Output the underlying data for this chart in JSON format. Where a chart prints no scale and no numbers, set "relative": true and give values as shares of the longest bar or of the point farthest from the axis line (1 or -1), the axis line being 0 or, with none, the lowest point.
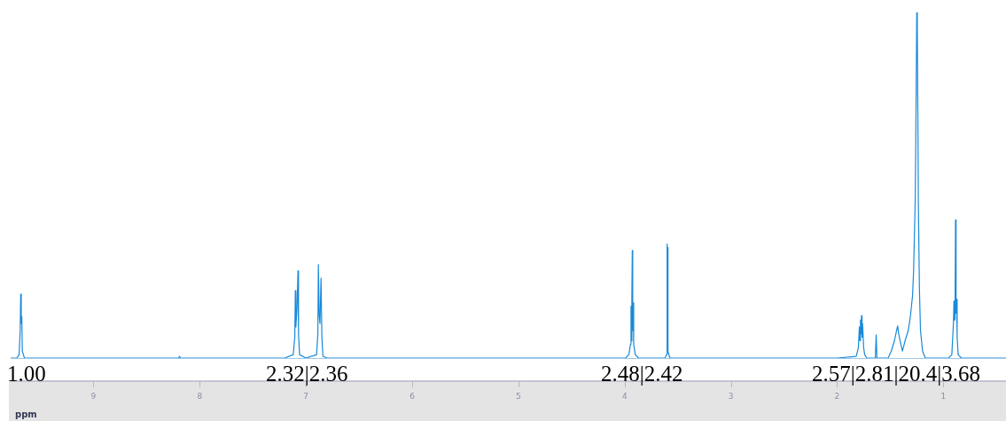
{
  "chart_data": {
    "type": "line",
    "relative": true,
    "xlabel": "ppm",
    "xlim": [
      9.78,
      0.41
    ],
    "xticks": [
      9,
      8,
      7,
      6,
      5,
      4,
      3,
      2,
      1
    ],
    "grid": false,
    "legend": false,
    "marker": "none",
    "line_style": "solid",
    "series": [
      {
        "color": "#1a8ad8",
        "x": [
          9.78,
          9.72,
          9.7,
          9.69,
          9.685,
          9.68,
          9.675,
          9.67,
          9.65,
          8.2,
          8.19,
          8.18,
          7.2,
          7.12,
          7.105,
          7.1,
          7.095,
          7.085,
          7.075,
          7.07,
          7.06,
          7.0,
          6.9,
          6.888,
          6.883,
          6.875,
          6.868,
          6.858,
          6.85,
          6.84,
          6.8,
          5.5,
          3.99,
          3.96,
          3.945,
          3.94,
          3.935,
          3.932,
          3.928,
          3.924,
          3.92,
          3.915,
          3.9,
          3.87,
          3.62,
          3.605,
          3.6,
          3.597,
          3.594,
          3.59,
          3.575,
          2.0,
          1.82,
          1.8,
          1.79,
          1.785,
          1.78,
          1.775,
          1.77,
          1.765,
          1.76,
          1.75,
          1.74,
          1.72,
          1.64,
          1.632,
          1.625,
          1.52,
          1.49,
          1.46,
          1.44,
          1.43,
          1.42,
          1.4,
          1.385,
          1.36,
          1.33,
          1.31,
          1.29,
          1.28,
          1.265,
          1.26,
          1.25,
          1.245,
          1.24,
          1.235,
          1.225,
          1.215,
          1.195,
          1.17,
          0.95,
          0.92,
          0.905,
          0.9,
          0.895,
          0.89,
          0.885,
          0.88,
          0.875,
          0.87,
          0.86,
          0.83,
          0.41
        ],
        "values": [
          0,
          0,
          0.01,
          0.08,
          0.185,
          0.1,
          0.12,
          0.02,
          0,
          0,
          0.005,
          0,
          0,
          0.01,
          0.06,
          0.195,
          0.09,
          0.14,
          0.252,
          0.07,
          0.01,
          0,
          0.01,
          0.07,
          0.27,
          0.12,
          0.1,
          0.231,
          0.06,
          0.005,
          0,
          0,
          0,
          0.01,
          0.04,
          0.15,
          0.05,
          0.18,
          0.311,
          0.08,
          0.16,
          0.04,
          0.01,
          0,
          0,
          0.01,
          0.33,
          0.15,
          0.32,
          0.02,
          0,
          0,
          0.005,
          0.03,
          0.09,
          0.05,
          0.11,
          0.07,
          0.123,
          0.06,
          0.1,
          0.03,
          0.01,
          0,
          0,
          0.067,
          0,
          0,
          0.02,
          0.05,
          0.08,
          0.093,
          0.07,
          0.04,
          0.02,
          0.05,
          0.08,
          0.12,
          0.18,
          0.25,
          0.45,
          0.6,
          1.0,
          0.95,
          0.72,
          0.45,
          0.2,
          0.08,
          0.02,
          0,
          0,
          0.01,
          0.1,
          0.165,
          0.11,
          0.11,
          0.4,
          0.13,
          0.17,
          0.06,
          0.01,
          0,
          0
        ]
      }
    ],
    "annotations": [
      "1.00",
      "2.32|2.36",
      "2.48|2.42",
      "2.57|2.81|20.4|3.68"
    ]
  }
}
